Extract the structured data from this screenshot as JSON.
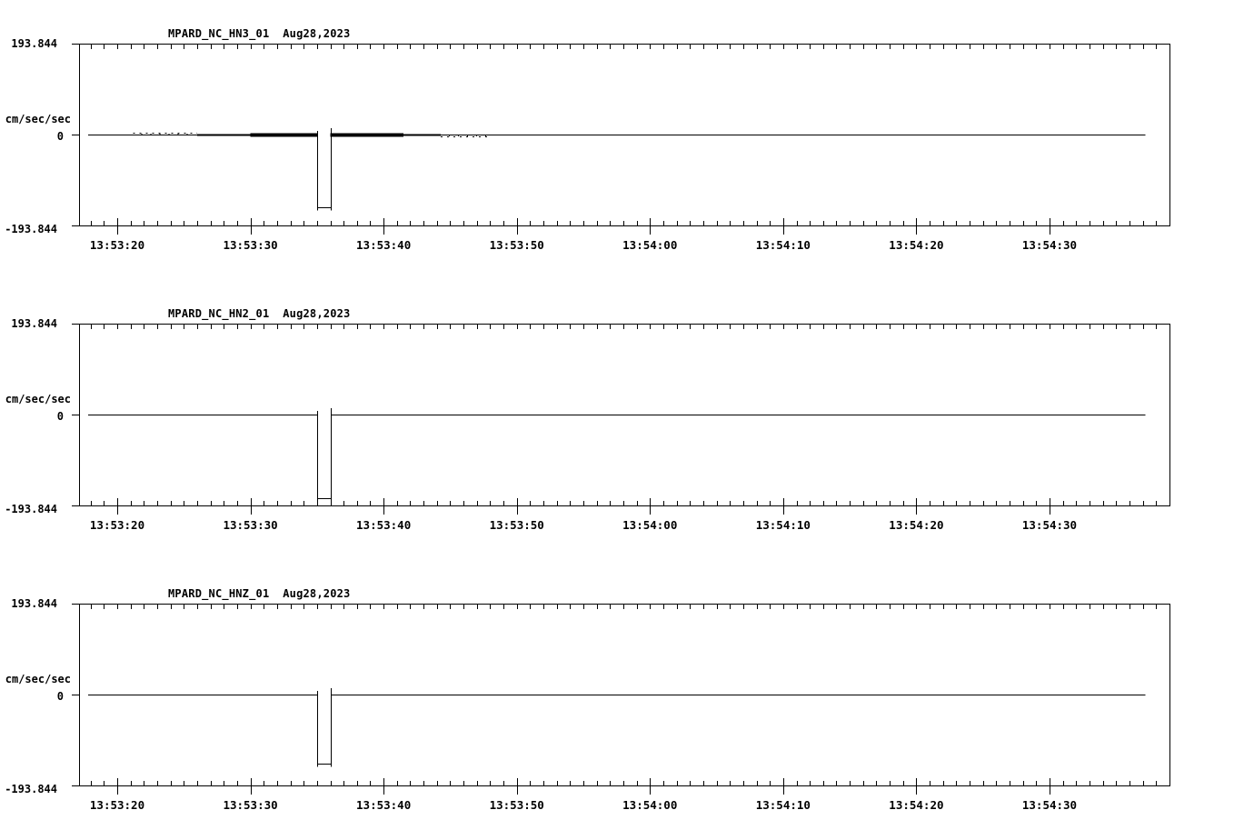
{
  "page": {
    "background_color": "#ffffff",
    "trace_color": "#000000",
    "description": "Three stacked seismogram acceleration traces for station MPARD (NC network), channels HN3, HN2, HNZ, recorded Aug 28, 2023"
  },
  "chart_data": {
    "type": "line",
    "units": "cm/sec/sec",
    "x_axis": {
      "minor_tick_interval_s": 1,
      "major_tick_interval_s": 10,
      "first_major_tick": "13:53:20",
      "last_major_tick": "13:54:30",
      "visible_range": [
        "13:53:17",
        "13:54:40"
      ]
    },
    "charts": [
      {
        "title": "MPARD_NC_HN3_01  Aug28,2023",
        "station_channel": "MPARD_NC_HN3_01",
        "date": "Aug28,2023",
        "ylabel": "cm/sec/sec",
        "y_max_label": "193.844",
        "y_zero_label": "0",
        "y_min_label": "-193.844",
        "ylim": [
          -193.844,
          193.844
        ],
        "x_tick_labels": [
          "13:53:20",
          "13:53:30",
          "13:53:40",
          "13:53:50",
          "13:54:00",
          "13:54:10",
          "13:54:20",
          "13:54:30"
        ],
        "baseline_value": 0,
        "data_start_offset_s": -2.2,
        "data_end_offset_s": 77.2,
        "pulse": {
          "start_time": "13:53:35",
          "end_time": "13:53:36",
          "start_offset_s": 15.0,
          "end_offset_s": 16.0,
          "min_value": -155
        },
        "noise_bands": [
          {
            "start_offset_s": 6.0,
            "end_offset_s": 10.0,
            "amplitude": 2.4
          },
          {
            "start_offset_s": 10.0,
            "end_offset_s": 15.0,
            "amplitude": 3.8
          },
          {
            "start_offset_s": 16.0,
            "end_offset_s": 21.5,
            "amplitude": 3.8
          },
          {
            "start_offset_s": 21.5,
            "end_offset_s": 24.3,
            "amplitude": 2.0
          }
        ],
        "speck_bands": [
          {
            "start_offset_s": 1.2,
            "end_offset_s": 6.0,
            "side": 1
          },
          {
            "start_offset_s": 24.3,
            "end_offset_s": 28.0,
            "side": -1
          }
        ]
      },
      {
        "title": "MPARD_NC_HN2_01  Aug28,2023",
        "station_channel": "MPARD_NC_HN2_01",
        "date": "Aug28,2023",
        "ylabel": "cm/sec/sec",
        "y_max_label": "193.844",
        "y_zero_label": "0",
        "y_min_label": "-193.844",
        "ylim": [
          -193.844,
          193.844
        ],
        "x_tick_labels": [
          "13:53:20",
          "13:53:30",
          "13:53:40",
          "13:53:50",
          "13:54:00",
          "13:54:10",
          "13:54:20",
          "13:54:30"
        ],
        "baseline_value": 0,
        "data_start_offset_s": -2.2,
        "data_end_offset_s": 77.2,
        "pulse": {
          "start_time": "13:53:35",
          "end_time": "13:53:36",
          "start_offset_s": 15.0,
          "end_offset_s": 16.0,
          "min_value": -178
        },
        "noise_bands": [],
        "speck_bands": []
      },
      {
        "title": "MPARD_NC_HNZ_01  Aug28,2023",
        "station_channel": "MPARD_NC_HNZ_01",
        "date": "Aug28,2023",
        "ylabel": "cm/sec/sec",
        "y_max_label": "193.844",
        "y_zero_label": "0",
        "y_min_label": "-193.844",
        "ylim": [
          -193.844,
          193.844
        ],
        "x_tick_labels": [
          "13:53:20",
          "13:53:30",
          "13:53:40",
          "13:53:50",
          "13:54:00",
          "13:54:10",
          "13:54:20",
          "13:54:30"
        ],
        "baseline_value": 0,
        "data_start_offset_s": -2.2,
        "data_end_offset_s": 77.2,
        "pulse": {
          "start_time": "13:53:35",
          "end_time": "13:53:36",
          "start_offset_s": 15.0,
          "end_offset_s": 16.0,
          "min_value": -147
        },
        "noise_bands": [],
        "speck_bands": []
      }
    ]
  }
}
